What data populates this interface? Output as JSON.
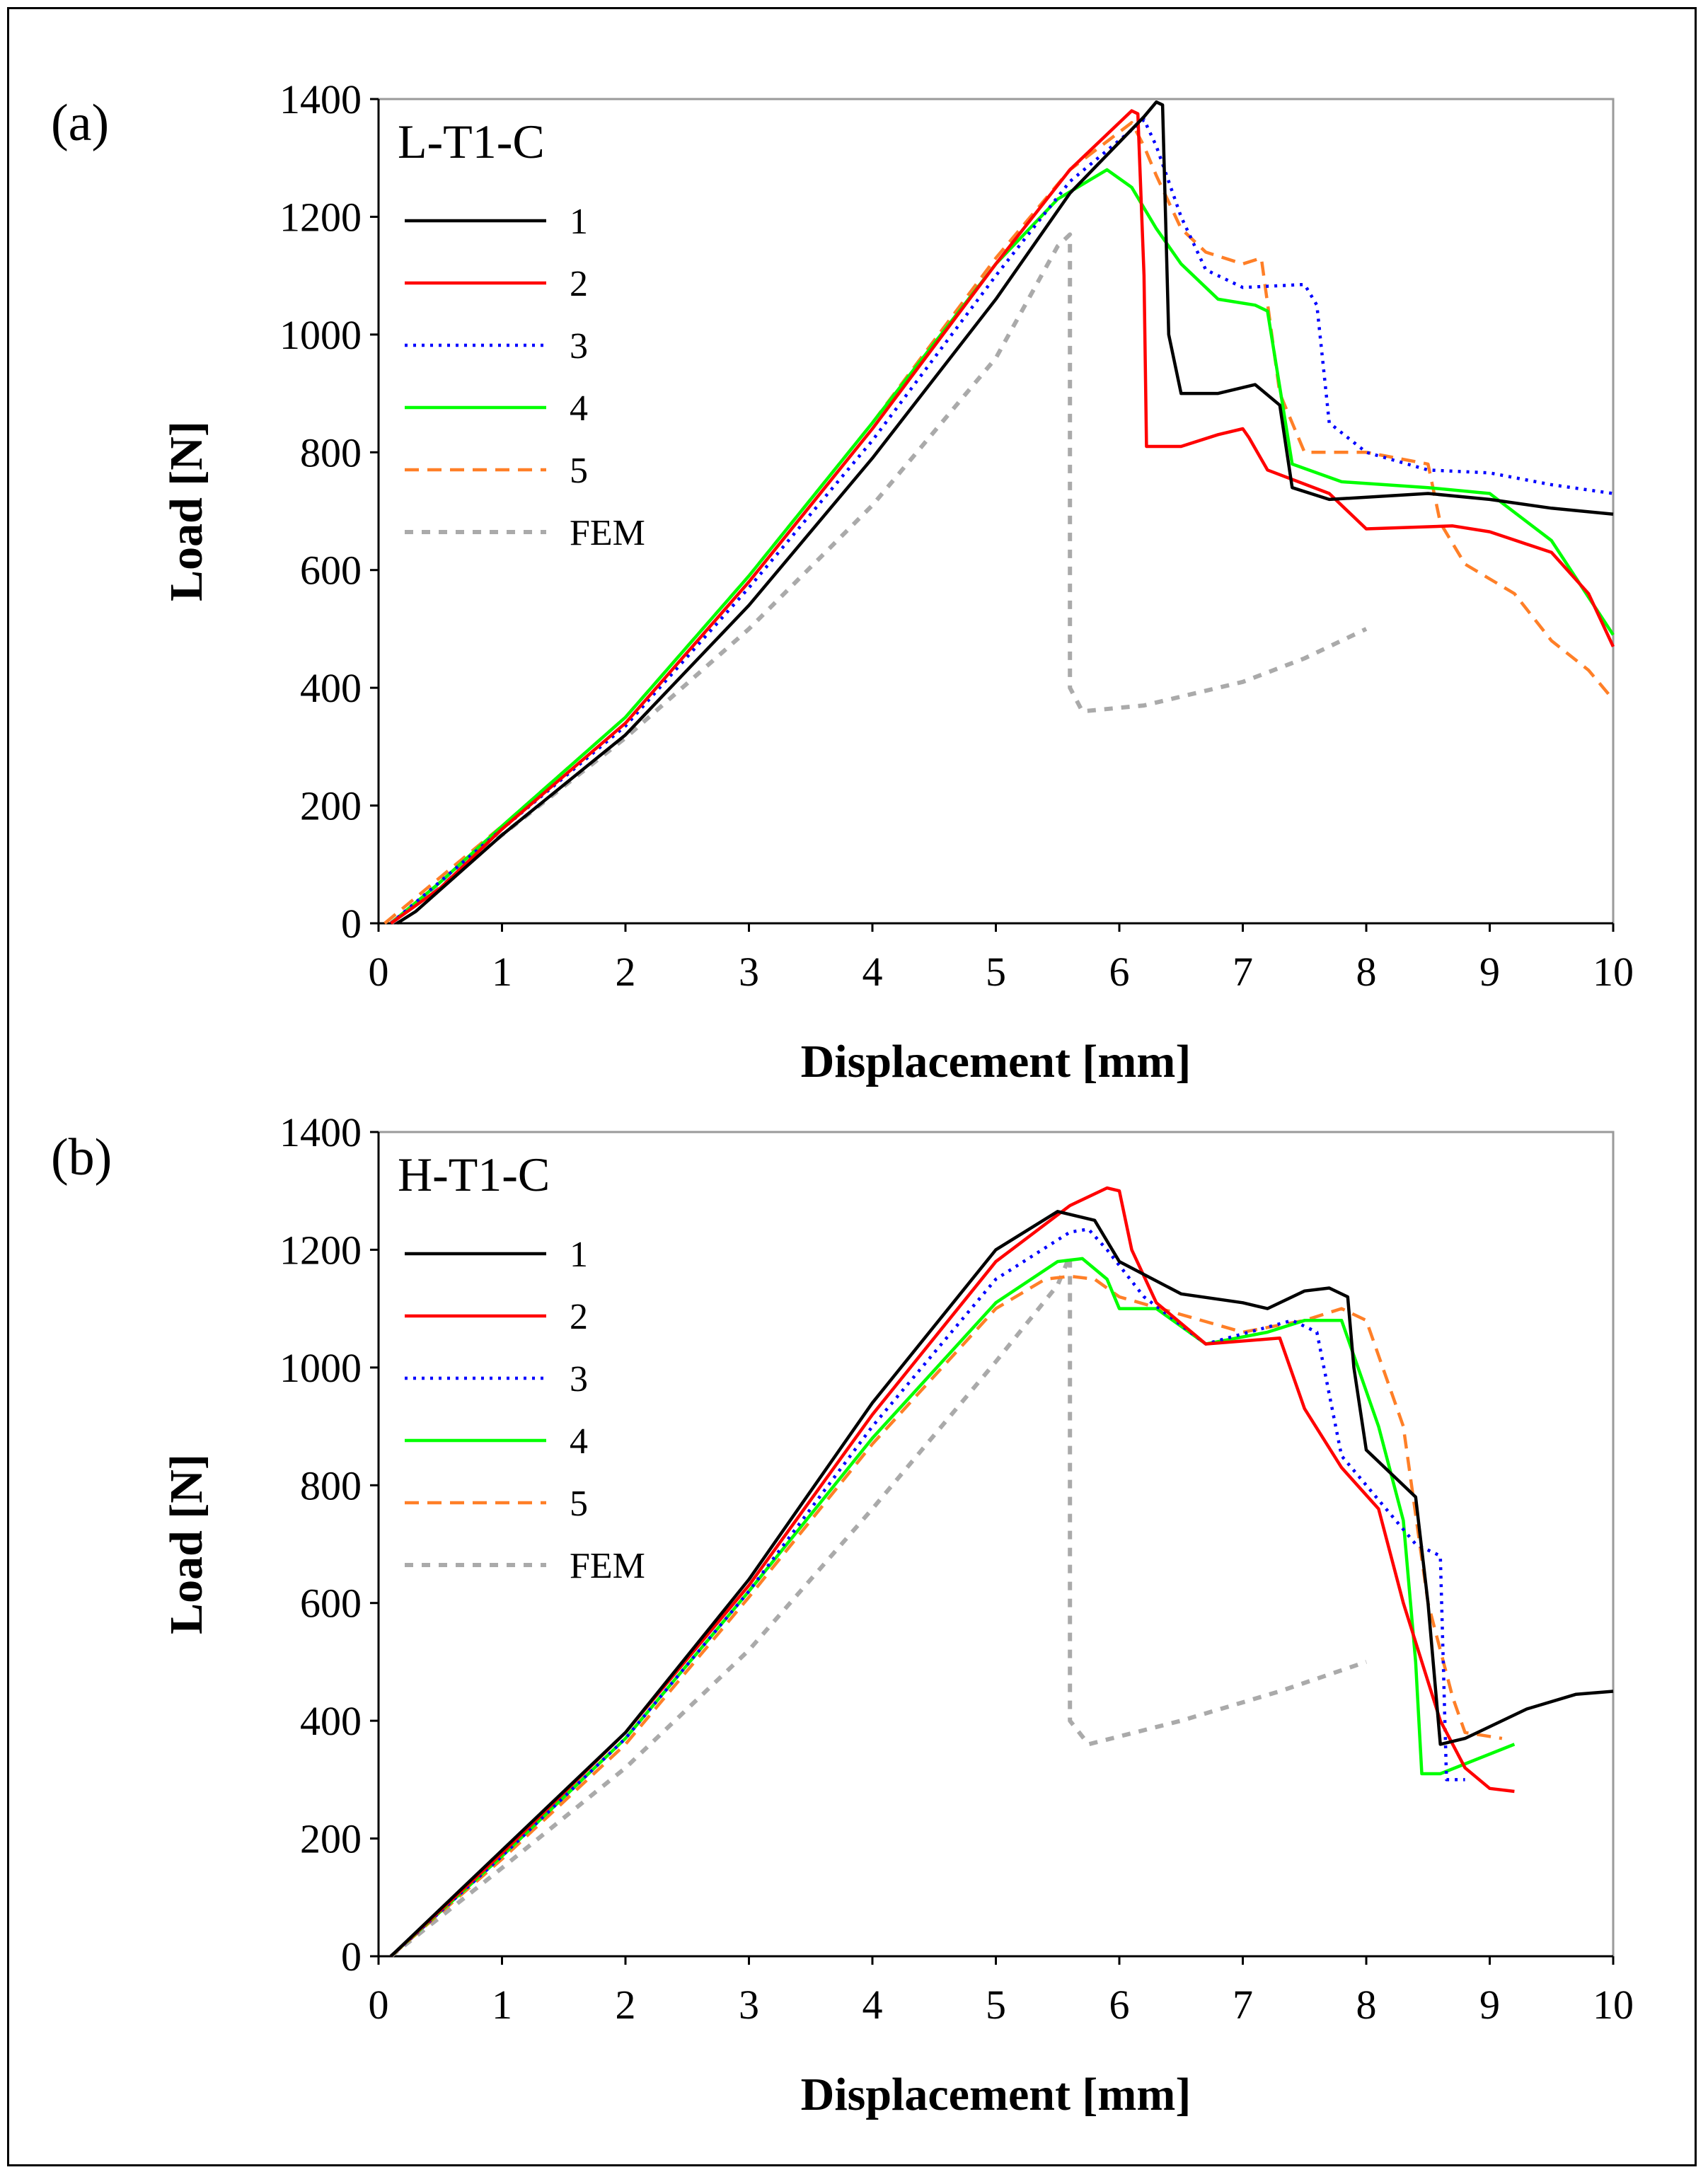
{
  "styles": {
    "1": {
      "color": "#000000",
      "dash": ""
    },
    "2": {
      "color": "#ff0000",
      "dash": ""
    },
    "3": {
      "color": "#0000ff",
      "dash": "4 8"
    },
    "4": {
      "color": "#00ff00",
      "dash": ""
    },
    "5": {
      "color": "#ff7f27",
      "dash": "20 12"
    },
    "FEM": {
      "color": "#aaaaaa",
      "dash": "12 12"
    }
  },
  "chart_data": [
    {
      "type": "line",
      "panel_label": "(a)",
      "title": "L-T1-C",
      "xlabel": "Displacement [mm]",
      "ylabel": "Load [N]",
      "xlim": [
        0,
        10
      ],
      "ylim": [
        0,
        1400
      ],
      "xticks": [
        0,
        1,
        2,
        3,
        4,
        5,
        6,
        7,
        8,
        9,
        10
      ],
      "yticks": [
        0,
        200,
        400,
        600,
        800,
        1000,
        1200,
        1400
      ],
      "legend": [
        "1",
        "2",
        "3",
        "4",
        "5",
        "FEM"
      ],
      "legend_position": "top-left",
      "series": [
        {
          "name": "1",
          "points": [
            [
              0.15,
              0
            ],
            [
              0.3,
              20
            ],
            [
              1,
              150
            ],
            [
              2,
              320
            ],
            [
              3,
              540
            ],
            [
              4,
              790
            ],
            [
              5,
              1060
            ],
            [
              5.6,
              1240
            ],
            [
              6.2,
              1370
            ],
            [
              6.3,
              1395
            ],
            [
              6.35,
              1390
            ],
            [
              6.4,
              1000
            ],
            [
              6.5,
              900
            ],
            [
              6.8,
              900
            ],
            [
              7.1,
              915
            ],
            [
              7.3,
              880
            ],
            [
              7.4,
              740
            ],
            [
              7.7,
              720
            ],
            [
              8.5,
              730
            ],
            [
              9,
              720
            ],
            [
              9.5,
              705
            ],
            [
              10,
              695
            ]
          ]
        },
        {
          "name": "2",
          "points": [
            [
              0.1,
              0
            ],
            [
              0.5,
              60
            ],
            [
              1,
              160
            ],
            [
              2,
              340
            ],
            [
              3,
              580
            ],
            [
              4,
              840
            ],
            [
              5,
              1120
            ],
            [
              5.6,
              1280
            ],
            [
              6.1,
              1380
            ],
            [
              6.15,
              1375
            ],
            [
              6.2,
              1100
            ],
            [
              6.22,
              810
            ],
            [
              6.5,
              810
            ],
            [
              6.8,
              830
            ],
            [
              7,
              840
            ],
            [
              7.05,
              825
            ],
            [
              7.2,
              770
            ],
            [
              7.7,
              730
            ],
            [
              8,
              670
            ],
            [
              8.7,
              675
            ],
            [
              9,
              665
            ],
            [
              9.5,
              630
            ],
            [
              9.8,
              560
            ],
            [
              10,
              470
            ]
          ]
        },
        {
          "name": "3",
          "points": [
            [
              0.1,
              0
            ],
            [
              1,
              160
            ],
            [
              2,
              335
            ],
            [
              3,
              570
            ],
            [
              4,
              820
            ],
            [
              5,
              1100
            ],
            [
              5.6,
              1260
            ],
            [
              6.2,
              1365
            ],
            [
              6.3,
              1320
            ],
            [
              6.5,
              1200
            ],
            [
              6.7,
              1110
            ],
            [
              7,
              1080
            ],
            [
              7.5,
              1085
            ],
            [
              7.6,
              1050
            ],
            [
              7.7,
              850
            ],
            [
              8,
              800
            ],
            [
              8.5,
              770
            ],
            [
              9,
              765
            ],
            [
              9.5,
              745
            ],
            [
              10,
              730
            ]
          ]
        },
        {
          "name": "4",
          "points": [
            [
              0.1,
              0
            ],
            [
              0.5,
              70
            ],
            [
              1,
              165
            ],
            [
              2,
              350
            ],
            [
              3,
              590
            ],
            [
              4,
              850
            ],
            [
              5,
              1120
            ],
            [
              5.5,
              1230
            ],
            [
              5.9,
              1280
            ],
            [
              6.1,
              1250
            ],
            [
              6.3,
              1180
            ],
            [
              6.5,
              1120
            ],
            [
              6.8,
              1060
            ],
            [
              7.1,
              1050
            ],
            [
              7.2,
              1040
            ],
            [
              7.4,
              780
            ],
            [
              7.8,
              750
            ],
            [
              8.5,
              740
            ],
            [
              9,
              730
            ],
            [
              9.5,
              650
            ],
            [
              10,
              490
            ]
          ]
        },
        {
          "name": "5",
          "points": [
            [
              0.05,
              0
            ],
            [
              1,
              165
            ],
            [
              2,
              350
            ],
            [
              3,
              590
            ],
            [
              4,
              850
            ],
            [
              5,
              1130
            ],
            [
              5.6,
              1280
            ],
            [
              6.1,
              1360
            ],
            [
              6.2,
              1320
            ],
            [
              6.3,
              1270
            ],
            [
              6.5,
              1180
            ],
            [
              6.7,
              1140
            ],
            [
              7,
              1120
            ],
            [
              7.15,
              1130
            ],
            [
              7.3,
              900
            ],
            [
              7.5,
              800
            ],
            [
              8,
              800
            ],
            [
              8.5,
              780
            ],
            [
              8.6,
              680
            ],
            [
              8.8,
              610
            ],
            [
              9.2,
              560
            ],
            [
              9.5,
              480
            ],
            [
              9.8,
              430
            ],
            [
              10,
              380
            ]
          ]
        },
        {
          "name": "FEM",
          "points": [
            [
              0.1,
              0
            ],
            [
              1,
              150
            ],
            [
              2,
              315
            ],
            [
              3,
              500
            ],
            [
              4,
              710
            ],
            [
              5,
              960
            ],
            [
              5.5,
              1150
            ],
            [
              5.6,
              1170
            ],
            [
              5.6,
              400
            ],
            [
              5.7,
              360
            ],
            [
              6.2,
              370
            ],
            [
              7,
              410
            ],
            [
              7.5,
              450
            ],
            [
              8,
              500
            ]
          ]
        }
      ]
    },
    {
      "type": "line",
      "panel_label": "(b)",
      "title": "H-T1-C",
      "xlabel": "Displacement [mm]",
      "ylabel": "Load [N]",
      "xlim": [
        0,
        10
      ],
      "ylim": [
        0,
        1400
      ],
      "xticks": [
        0,
        1,
        2,
        3,
        4,
        5,
        6,
        7,
        8,
        9,
        10
      ],
      "yticks": [
        0,
        200,
        400,
        600,
        800,
        1000,
        1200,
        1400
      ],
      "legend": [
        "1",
        "2",
        "3",
        "4",
        "5",
        "FEM"
      ],
      "legend_position": "top-left",
      "series": [
        {
          "name": "1",
          "points": [
            [
              0.1,
              0
            ],
            [
              0.5,
              80
            ],
            [
              1,
              180
            ],
            [
              2,
              380
            ],
            [
              3,
              640
            ],
            [
              4,
              940
            ],
            [
              5,
              1200
            ],
            [
              5.5,
              1265
            ],
            [
              5.8,
              1250
            ],
            [
              6,
              1180
            ],
            [
              6.5,
              1125
            ],
            [
              7,
              1110
            ],
            [
              7.2,
              1100
            ],
            [
              7.5,
              1130
            ],
            [
              7.7,
              1135
            ],
            [
              7.85,
              1120
            ],
            [
              7.9,
              1000
            ],
            [
              8,
              860
            ],
            [
              8.4,
              780
            ],
            [
              8.5,
              600
            ],
            [
              8.6,
              360
            ],
            [
              8.8,
              370
            ],
            [
              9,
              390
            ],
            [
              9.3,
              420
            ],
            [
              9.7,
              445
            ],
            [
              10,
              450
            ]
          ]
        },
        {
          "name": "2",
          "points": [
            [
              0.1,
              0
            ],
            [
              1,
              175
            ],
            [
              2,
              380
            ],
            [
              3,
              630
            ],
            [
              4,
              920
            ],
            [
              5,
              1180
            ],
            [
              5.6,
              1275
            ],
            [
              5.9,
              1305
            ],
            [
              6,
              1300
            ],
            [
              6.1,
              1200
            ],
            [
              6.3,
              1110
            ],
            [
              6.7,
              1040
            ],
            [
              7.3,
              1050
            ],
            [
              7.5,
              930
            ],
            [
              7.8,
              830
            ],
            [
              8.1,
              760
            ],
            [
              8.3,
              600
            ],
            [
              8.6,
              400
            ],
            [
              8.8,
              320
            ],
            [
              9,
              285
            ],
            [
              9.2,
              280
            ]
          ]
        },
        {
          "name": "3",
          "points": [
            [
              0.1,
              0
            ],
            [
              1,
              170
            ],
            [
              2,
              370
            ],
            [
              3,
              620
            ],
            [
              4,
              900
            ],
            [
              5,
              1150
            ],
            [
              5.6,
              1230
            ],
            [
              5.75,
              1235
            ],
            [
              5.9,
              1200
            ],
            [
              6.2,
              1120
            ],
            [
              6.7,
              1040
            ],
            [
              7.4,
              1080
            ],
            [
              7.6,
              1060
            ],
            [
              7.8,
              850
            ],
            [
              8,
              800
            ],
            [
              8.4,
              700
            ],
            [
              8.6,
              680
            ],
            [
              8.65,
              300
            ],
            [
              8.8,
              300
            ]
          ]
        },
        {
          "name": "4",
          "points": [
            [
              0.1,
              0
            ],
            [
              1,
              170
            ],
            [
              2,
              370
            ],
            [
              3,
              620
            ],
            [
              4,
              880
            ],
            [
              5,
              1110
            ],
            [
              5.5,
              1180
            ],
            [
              5.7,
              1185
            ],
            [
              5.9,
              1150
            ],
            [
              6,
              1100
            ],
            [
              6.3,
              1100
            ],
            [
              6.7,
              1040
            ],
            [
              7.2,
              1060
            ],
            [
              7.5,
              1080
            ],
            [
              7.8,
              1080
            ],
            [
              8.1,
              900
            ],
            [
              8.3,
              740
            ],
            [
              8.4,
              500
            ],
            [
              8.45,
              310
            ],
            [
              8.6,
              310
            ],
            [
              9.2,
              360
            ]
          ]
        },
        {
          "name": "5",
          "points": [
            [
              0.1,
              0
            ],
            [
              1,
              165
            ],
            [
              2,
              360
            ],
            [
              3,
              610
            ],
            [
              4,
              870
            ],
            [
              5,
              1100
            ],
            [
              5.4,
              1150
            ],
            [
              5.6,
              1155
            ],
            [
              5.8,
              1150
            ],
            [
              6,
              1120
            ],
            [
              6.5,
              1090
            ],
            [
              7,
              1060
            ],
            [
              7.5,
              1080
            ],
            [
              7.8,
              1100
            ],
            [
              8,
              1080
            ],
            [
              8.3,
              900
            ],
            [
              8.5,
              600
            ],
            [
              8.7,
              440
            ],
            [
              8.8,
              380
            ],
            [
              9.1,
              370
            ]
          ]
        },
        {
          "name": "FEM",
          "points": [
            [
              0.1,
              0
            ],
            [
              1,
              150
            ],
            [
              2,
              320
            ],
            [
              3,
              520
            ],
            [
              4,
              760
            ],
            [
              5,
              1010
            ],
            [
              5.5,
              1140
            ],
            [
              5.6,
              1190
            ],
            [
              5.6,
              400
            ],
            [
              5.75,
              360
            ],
            [
              6.5,
              400
            ],
            [
              7.3,
              450
            ],
            [
              8,
              500
            ]
          ]
        }
      ]
    }
  ]
}
